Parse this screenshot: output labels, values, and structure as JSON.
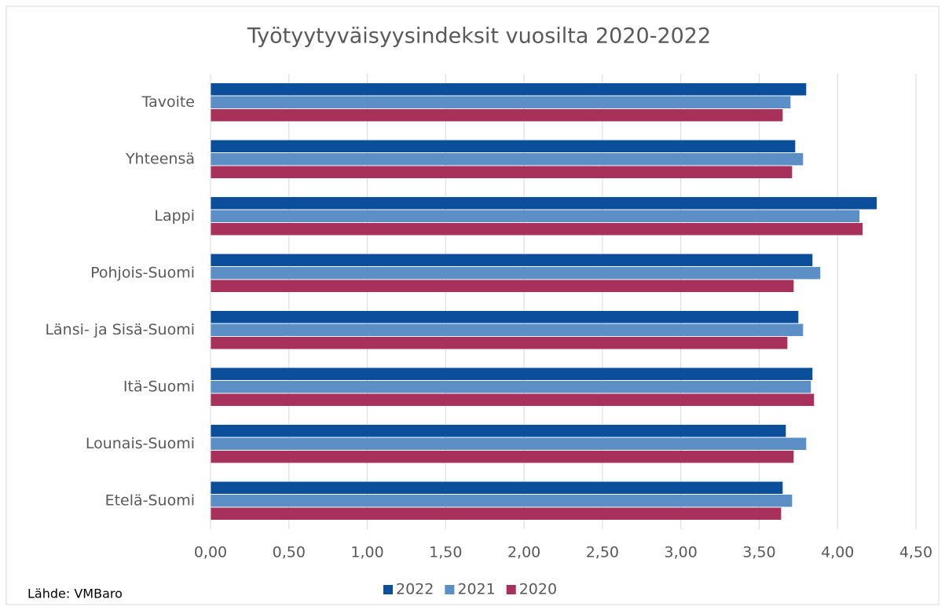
{
  "chart_data": {
    "type": "hbar",
    "title": "Työtyytyväisyysindeksit vuosilta 2020-2022",
    "categories": [
      "Tavoite",
      "Yhteensä",
      "Lappi",
      "Pohjois-Suomi",
      "Länsi- ja Sisä-Suomi",
      "Itä-Suomi",
      "Lounais-Suomi",
      "Etelä-Suomi"
    ],
    "series": [
      {
        "name": "2022",
        "color": "#0b4f9b",
        "values": [
          3.8,
          3.73,
          4.25,
          3.84,
          3.75,
          3.84,
          3.67,
          3.65
        ]
      },
      {
        "name": "2021",
        "color": "#5b8fc5",
        "values": [
          3.7,
          3.78,
          4.14,
          3.89,
          3.78,
          3.83,
          3.8,
          3.71
        ]
      },
      {
        "name": "2020",
        "color": "#a8315b",
        "values": [
          3.65,
          3.71,
          4.16,
          3.72,
          3.68,
          3.85,
          3.72,
          3.64
        ]
      }
    ],
    "xlim": [
      0,
      4.5
    ],
    "xticks": [
      {
        "value": 0,
        "label": "0,00"
      },
      {
        "value": 0.5,
        "label": "0,50"
      },
      {
        "value": 1,
        "label": "1,00"
      },
      {
        "value": 1.5,
        "label": "1,50"
      },
      {
        "value": 2,
        "label": "2,00"
      },
      {
        "value": 2.5,
        "label": "2,50"
      },
      {
        "value": 3,
        "label": "3,00"
      },
      {
        "value": 3.5,
        "label": "3,50"
      },
      {
        "value": 4,
        "label": "4,00"
      },
      {
        "value": 4.5,
        "label": "4,50"
      }
    ],
    "grid": true,
    "legend": "bottom",
    "source": "Lähde: VMBaro"
  }
}
